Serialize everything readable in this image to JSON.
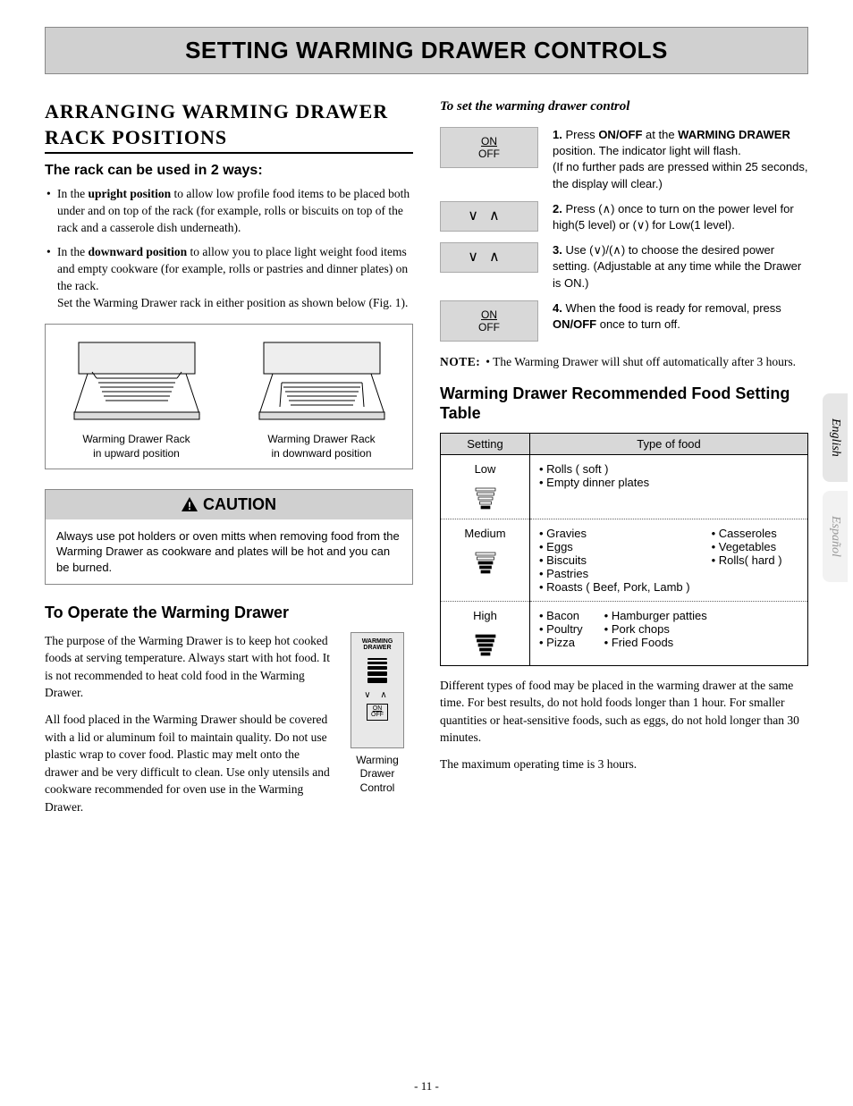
{
  "banner": "SETTING WARMING DRAWER CONTROLS",
  "left": {
    "mainHeading": "ARRANGING WARMING DRAWER RACK POSITIONS",
    "subHeading": "The rack can be used in 2 ways:",
    "bullet1": "In the <b>upright position</b> to allow low profile food items to be placed both under and on top of the rack (for example, rolls or biscuits on top of the rack and a casserole dish underneath).",
    "bullet2": "In the <b>downward position</b> to allow you to place light weight food items and empty cookware (for example, rolls or pastries and dinner plates) on the rack.<br>Set the Warming Drawer rack in either position as shown below (Fig. 1).",
    "figCaption1": "Warming Drawer Rack<br>in upward position",
    "figCaption2": "Warming Drawer Rack<br>in downward position",
    "cautionLabel": "CAUTION",
    "cautionBody": "Always use pot holders or oven mitts when removing food from the Warming Drawer as cookware and plates will be hot and you can be burned.",
    "operateHeading": "To Operate the Warming Drawer",
    "operatePara1": "The purpose of the Warming Drawer is to keep hot cooked foods at serving temperature. Always start with hot food. It is not recommended to heat cold food in the Warming Drawer.",
    "operatePara2": "All food placed in the Warming Drawer should be covered with a lid or aluminum foil to maintain quality. Do not use plastic wrap to cover food. Plastic may melt onto the drawer and be very difficult to clean. Use only utensils and cookware recommended for oven use in the Warming Drawer.",
    "controlCaption": "Warming<br>Drawer<br>Control",
    "cpLabel": "WARMING<br>DRAWER",
    "cpOn": "ON",
    "cpOff": "OFF"
  },
  "right": {
    "setTitle": "To set the warming drawer control",
    "steps": [
      {
        "iconType": "onoff",
        "text": "<b>1.</b> Press <b>ON/OFF</b> at the <b>WARMING DRAWER</b> position. The indicator light will flash.<br>(If no further pads are pressed within 25 seconds, the display will clear.)"
      },
      {
        "iconType": "arrows",
        "text": "<b>2.</b> Press (∧) once to turn on the power level for high(5 level) or (∨) for Low(1 level)."
      },
      {
        "iconType": "arrows",
        "text": "<b>3.</b> Use (∨)/(∧) to choose the desired power setting. (Adjustable at any time while the Drawer is ON.)"
      },
      {
        "iconType": "onoff",
        "text": "<b>4.</b> When the food is ready for removal, press <b>ON/OFF</b> once to turn off."
      }
    ],
    "noteLabel": "NOTE:",
    "noteText": "• The Warming Drawer will shut off automatically after 3 hours.",
    "tableHeading": "Warming Drawer Recommended Food Setting Table",
    "th1": "Setting",
    "th2": "Type of food",
    "rows": [
      {
        "setting": "Low",
        "bars": 1,
        "col1": [
          "Rolls ( soft )",
          "Empty dinner plates"
        ],
        "col2": []
      },
      {
        "setting": "Medium",
        "bars": 3,
        "col1": [
          "Gravies",
          "Eggs",
          "Biscuits",
          "Pastries",
          "Roasts ( Beef, Pork, Lamb )"
        ],
        "col2": [
          "Casseroles",
          "Vegetables",
          "Rolls( hard )"
        ]
      },
      {
        "setting": "High",
        "bars": 5,
        "col1": [
          "Bacon",
          "Poultry",
          "Pizza"
        ],
        "col2": [
          "Hamburger patties",
          "Pork chops",
          "Fried Foods"
        ]
      }
    ],
    "footPara1": "Different types of food may be placed in the warming drawer at the same time. For best results, do not hold foods longer than 1 hour. For smaller quantities or heat-sensitive foods, such as eggs, do not hold longer than 30 minutes.",
    "footPara2": "The maximum operating time is 3 hours."
  },
  "lang1": "English",
  "lang2": "Español",
  "pageNum": "- 11 -",
  "colors": {
    "bannerBg": "#d0d0d0",
    "boxBg": "#d8d8d8",
    "tabBg": "#e6e6e6"
  }
}
